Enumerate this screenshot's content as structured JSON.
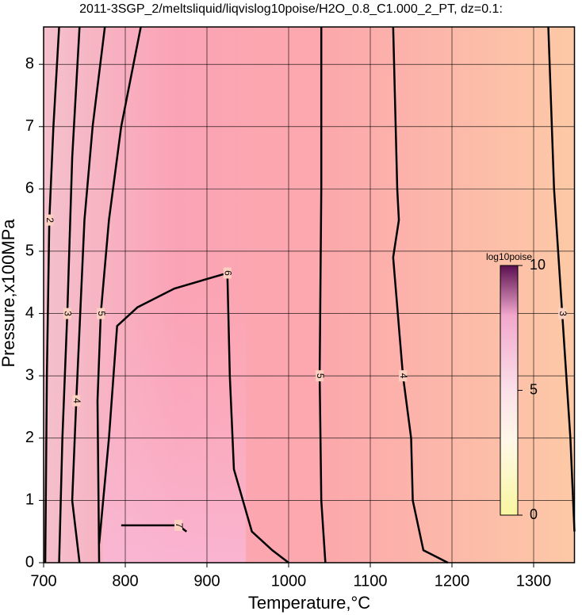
{
  "chart_data": {
    "type": "contour",
    "title": "2011-3SGP_2/meltsliquid/liqvislog10poise/H2O_0.8_C1.000_2_PT, dz=0.1:",
    "xlabel": "Temperature,°C",
    "ylabel": "Pressure,x100MPa",
    "xlim": [
      700,
      1350
    ],
    "ylim": [
      0,
      8.6
    ],
    "xticks": [
      700,
      800,
      900,
      1000,
      1100,
      1200,
      1300
    ],
    "yticks": [
      0,
      1,
      2,
      3,
      4,
      5,
      6,
      7,
      8
    ],
    "grid": true,
    "contours": [
      {
        "level": 2,
        "x": [
          719,
          712,
          707,
          704,
          702
        ],
        "y": [
          8.6,
          7,
          5.5,
          3,
          0
        ]
      },
      {
        "level": 3,
        "x": [
          744,
          735,
          729,
          723,
          719
        ],
        "y": [
          8.6,
          6.5,
          4,
          2,
          0
        ]
      },
      {
        "level": 4,
        "x": [
          775,
          760,
          750,
          740,
          735,
          744
        ],
        "y": [
          8.6,
          7,
          5.5,
          2.6,
          1,
          0
        ]
      },
      {
        "level": 5,
        "x": [
          819,
          795,
          780,
          770,
          766,
          768
        ],
        "y": [
          8.6,
          7,
          5.5,
          4,
          2.6,
          0
        ]
      },
      {
        "level": 6,
        "x": [
          768,
          780,
          790,
          815,
          860,
          925,
          928,
          933,
          955,
          980,
          1000
        ],
        "y": [
          0.3,
          2,
          3.8,
          4.1,
          4.4,
          4.65,
          3,
          1.5,
          0.5,
          0.2,
          0
        ]
      },
      {
        "level": 7,
        "x": [
          795,
          865,
          875
        ],
        "y": [
          0.6,
          0.6,
          0.5
        ]
      },
      {
        "level": 5,
        "x": [
          1040,
          1040,
          1038,
          1040,
          1045
        ],
        "y": [
          8.6,
          6,
          3,
          1,
          0
        ]
      },
      {
        "level": 4,
        "x": [
          1128,
          1133,
          1135,
          1128,
          1140,
          1150,
          1152,
          1165,
          1195
        ],
        "y": [
          8.6,
          6,
          5.5,
          4.9,
          3,
          2,
          1,
          0.2,
          0
        ]
      },
      {
        "level": 3,
        "x": [
          1318,
          1325,
          1335,
          1345,
          1350
        ],
        "y": [
          8.6,
          6,
          4,
          2,
          0.5
        ]
      }
    ],
    "colorbar": {
      "label": "log10poise",
      "lim": [
        0,
        10
      ],
      "ticks": [
        0,
        5,
        10
      ]
    }
  }
}
